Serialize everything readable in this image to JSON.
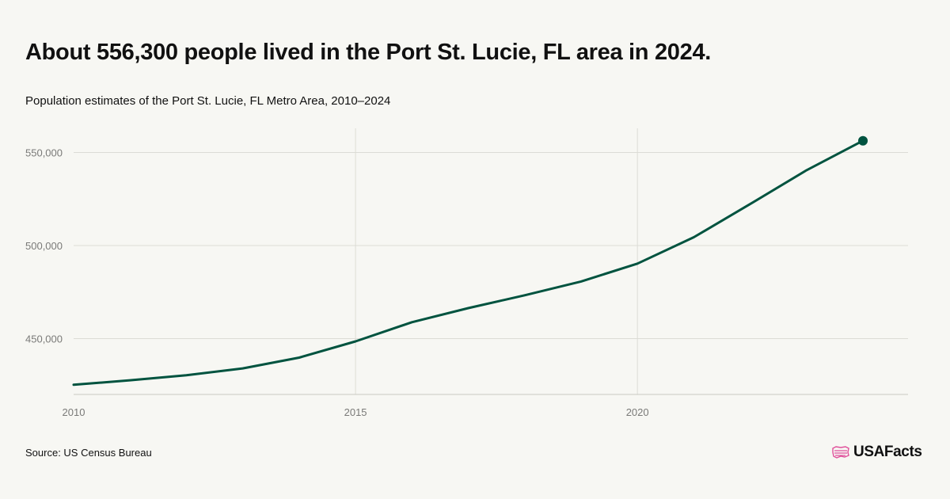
{
  "title": "About 556,300 people lived in the Port St. Lucie, FL area in 2024.",
  "subtitle": "Population estimates of the Port St. Lucie, FL Metro Area, 2010–2024",
  "source": "Source: US Census Bureau",
  "brand": "USAFacts",
  "colors": {
    "line": "#00533f",
    "grid": "#dcdcd6",
    "axis": "#c9c9c2",
    "brand_icon": "#e0509a"
  },
  "icons": {
    "brand": "us-map-flag-icon"
  },
  "chart_data": {
    "type": "line",
    "x": [
      2010,
      2011,
      2012,
      2013,
      2014,
      2015,
      2016,
      2017,
      2018,
      2019,
      2020,
      2021,
      2022,
      2023,
      2024
    ],
    "series": [
      {
        "values": [
          425200,
          427600,
          430300,
          434000,
          439800,
          448500,
          458800,
          466400,
          473300,
          480700,
          490300,
          504500,
          522300,
          540500,
          556300
        ]
      }
    ],
    "xticks": [
      2010,
      2015,
      2020
    ],
    "xtick_labels": [
      "2010",
      "2015",
      "2020"
    ],
    "yticks": [
      450000,
      500000,
      550000
    ],
    "ytick_labels": [
      "450,000",
      "500,000",
      "550,000"
    ],
    "xlim": [
      2010,
      2024.8
    ],
    "ylim": [
      420000,
      563000
    ],
    "grid": true,
    "end_marker": true
  }
}
